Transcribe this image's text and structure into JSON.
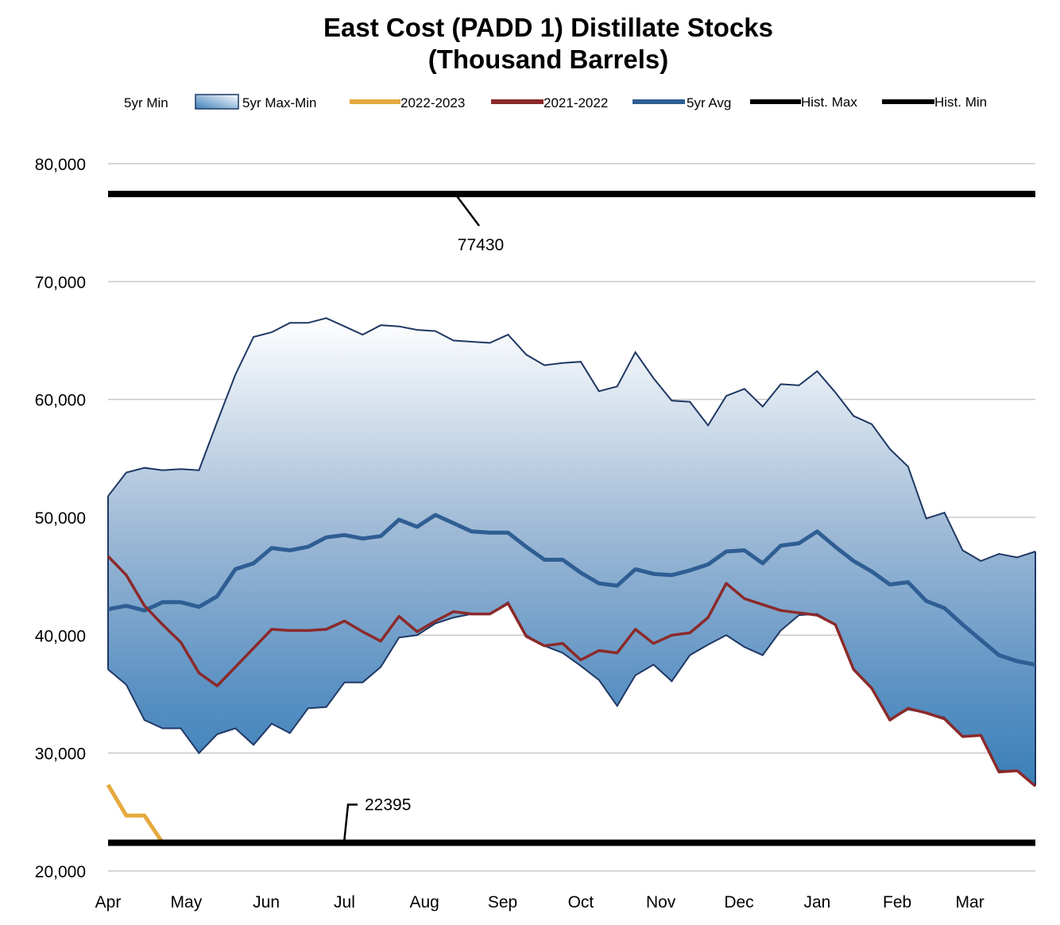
{
  "chart_data": {
    "type": "area",
    "title": [
      "East Cost (PADD 1) Distillate Stocks",
      "(Thousand Barrels)"
    ],
    "ylim": [
      20000,
      80000
    ],
    "y_ticks": [
      {
        "value": 20000,
        "label": "20,000"
      },
      {
        "value": 30000,
        "label": "30,000"
      },
      {
        "value": 40000,
        "label": "40,000"
      },
      {
        "value": 50000,
        "label": "50,000"
      },
      {
        "value": 60000,
        "label": "60,000"
      },
      {
        "value": 70000,
        "label": "70,000"
      },
      {
        "value": 80000,
        "label": "80,000"
      }
    ],
    "x_range": [
      0,
      52
    ],
    "x_ticks": [
      {
        "value": 0,
        "label": "Apr"
      },
      {
        "value": 4.3,
        "label": "May"
      },
      {
        "value": 8.7,
        "label": "Jun"
      },
      {
        "value": 13.0,
        "label": "Jul"
      },
      {
        "value": 17.4,
        "label": "Aug"
      },
      {
        "value": 21.7,
        "label": "Sep"
      },
      {
        "value": 26.0,
        "label": "Oct"
      },
      {
        "value": 30.4,
        "label": "Nov"
      },
      {
        "value": 34.7,
        "label": "Dec"
      },
      {
        "value": 39.0,
        "label": "Jan"
      },
      {
        "value": 43.4,
        "label": "Feb"
      },
      {
        "value": 47.4,
        "label": "Mar"
      }
    ],
    "legend": [
      {
        "label": "5yr Min",
        "kind": "none",
        "color": "#ffffff"
      },
      {
        "label": "5yr Max-Min",
        "kind": "area",
        "color": "#3b7fb7"
      },
      {
        "label": "2022-2023",
        "kind": "line",
        "color": "#e5a93e"
      },
      {
        "label": "2021-2022",
        "kind": "line",
        "color": "#8b2a2a"
      },
      {
        "label": "5yr Avg",
        "kind": "line",
        "color": "#2f5e94"
      },
      {
        "label": "Hist. Max",
        "kind": "line",
        "color": "#000000"
      },
      {
        "label": "Hist. Min",
        "kind": "line",
        "color": "#000000"
      }
    ],
    "series": {
      "max_5yr": [
        51800,
        53800,
        54200,
        54000,
        54100,
        54000,
        58100,
        62100,
        65300,
        65700,
        66500,
        66500,
        66900,
        66200,
        65500,
        66300,
        66200,
        65900,
        65800,
        65000,
        64900,
        64800,
        65500,
        63800,
        62900,
        63100,
        63200,
        60700,
        61100,
        64000,
        61800,
        59900,
        59800,
        57800,
        60300,
        60900,
        59400,
        61300,
        61200,
        62400,
        60600,
        58600,
        57900,
        55800,
        54300,
        49900,
        50400,
        47200,
        46300,
        46900,
        46600,
        47100
      ],
      "min_5yr": [
        37100,
        35800,
        32800,
        32100,
        32100,
        30000,
        31600,
        32100,
        30700,
        32500,
        31700,
        33800,
        33900,
        36000,
        36000,
        37300,
        39800,
        40000,
        41000,
        41500,
        41800,
        41800,
        42800,
        40000,
        39100,
        38500,
        37400,
        36200,
        34000,
        36600,
        37500,
        36100,
        38300,
        39200,
        40000,
        39000,
        38300,
        40400,
        41700,
        41800,
        40900,
        37100,
        35500,
        32800,
        33700,
        33400,
        33000,
        31400,
        31500,
        28500,
        28500,
        27200
      ],
      "avg_5yr": [
        42200,
        42500,
        42100,
        42800,
        42800,
        42400,
        43300,
        45600,
        46100,
        47400,
        47200,
        47500,
        48300,
        48500,
        48200,
        48400,
        49800,
        49200,
        50200,
        49500,
        48800,
        48700,
        48700,
        47500,
        46400,
        46400,
        45300,
        44400,
        44200,
        45600,
        45200,
        45100,
        45500,
        46000,
        47100,
        47200,
        46100,
        47600,
        47800,
        48800,
        47500,
        46300,
        45400,
        44300,
        44500,
        42900,
        42300,
        40900,
        39600,
        38300,
        37800,
        37500
      ],
      "y2021_2022": [
        46700,
        45100,
        42500,
        40900,
        39400,
        36800,
        35700,
        37300,
        38900,
        40500,
        40400,
        40400,
        40500,
        41200,
        40300,
        39500,
        41600,
        40300,
        41200,
        42000,
        41800,
        41800,
        42700,
        39900,
        39100,
        39300,
        37900,
        38700,
        38500,
        40500,
        39300,
        40000,
        40200,
        41500,
        44400,
        43100,
        42600,
        42100,
        41900,
        41700,
        40900,
        37100,
        35500,
        32800,
        33800,
        33400,
        32900,
        31400,
        31500,
        28400,
        28500,
        27200
      ],
      "y2022_2023": [
        27300,
        24700,
        24700,
        22400
      ]
    },
    "hist_max": 77430,
    "hist_min": 22395,
    "hist_max_label": "77430",
    "hist_min_label": "22395"
  }
}
